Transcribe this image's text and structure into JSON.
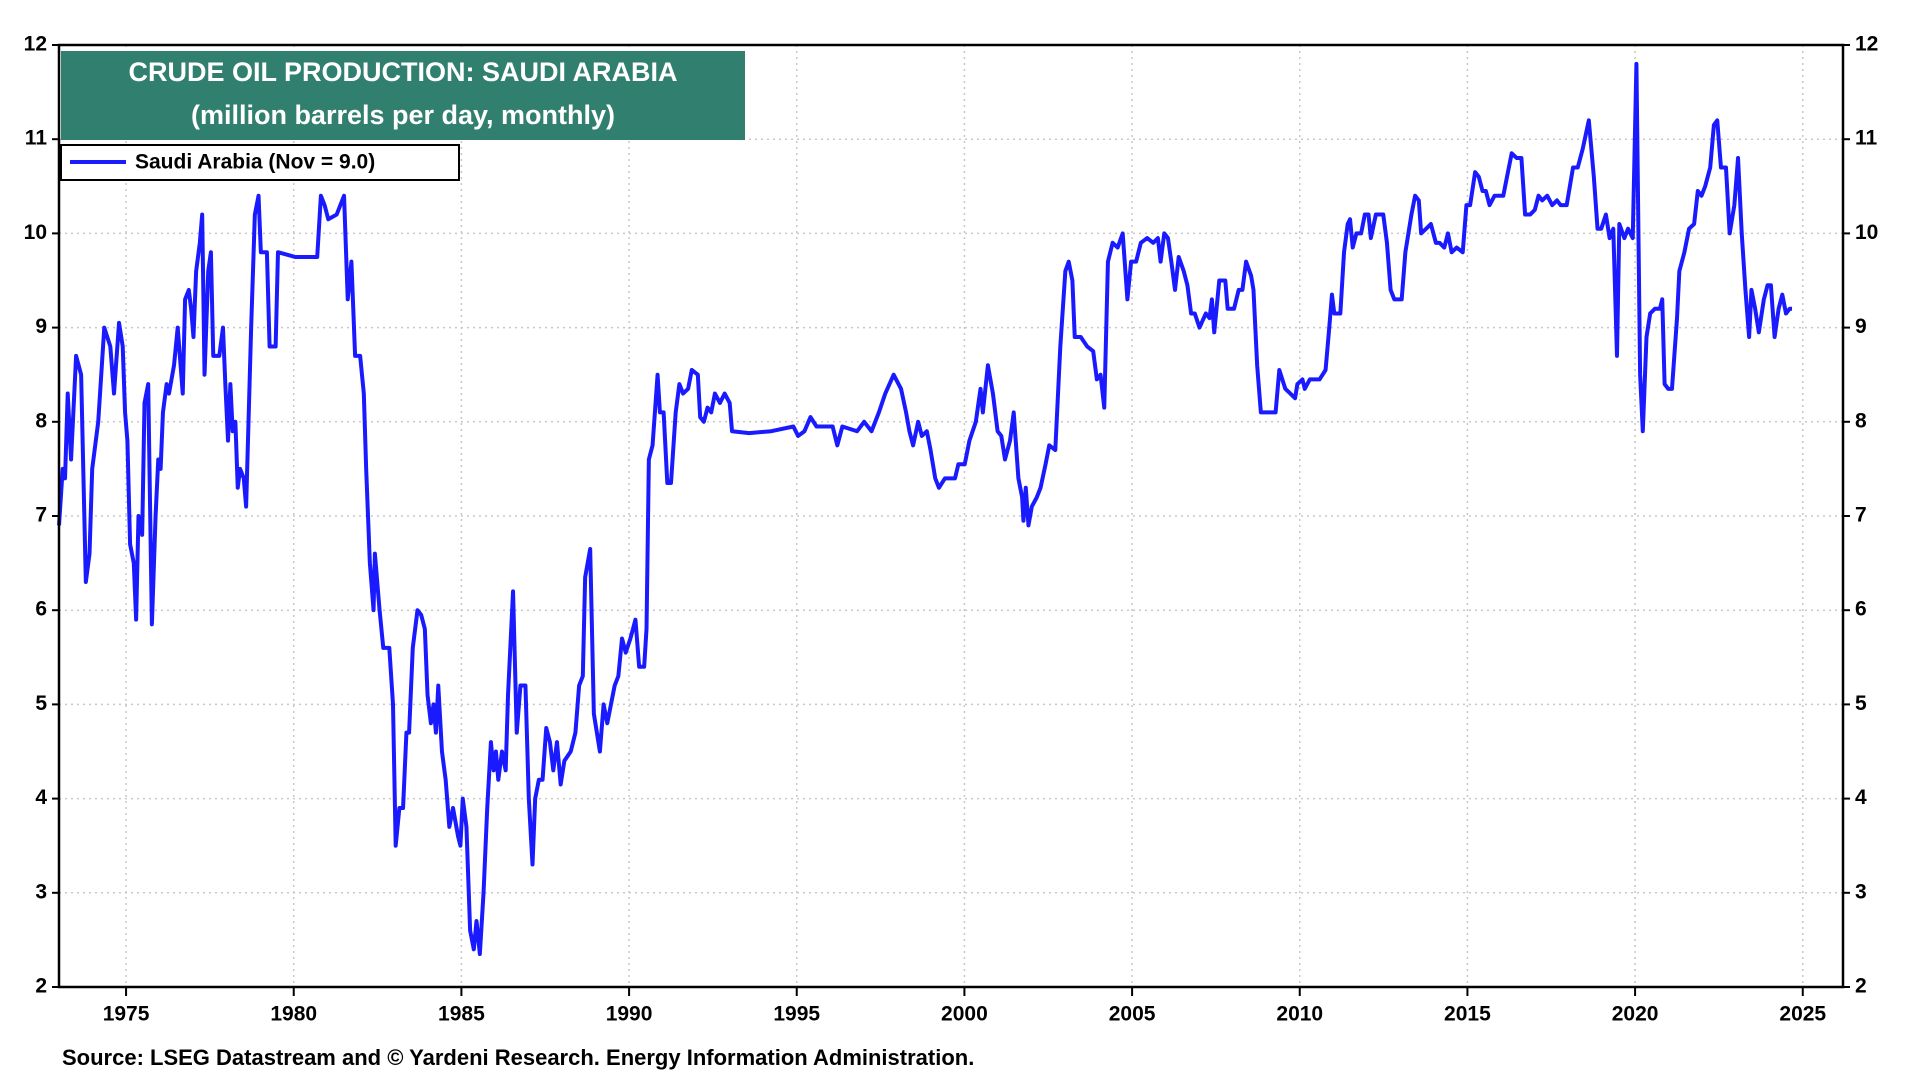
{
  "chart_data": {
    "type": "line",
    "title": "CRUDE OIL PRODUCTION: SAUDI ARABIA",
    "subtitle": "(million barrels per day, monthly)",
    "source": "Source: LSEG Datastream and © Yardeni Research. Energy Information Administration.",
    "legend": "upper left",
    "grid": true,
    "xlim": [
      1973,
      2026.2
    ],
    "ylim": [
      2,
      12
    ],
    "y2lim": [
      2,
      12
    ],
    "xticks": [
      1975,
      1980,
      1985,
      1990,
      1995,
      2000,
      2005,
      2010,
      2015,
      2020,
      2025
    ],
    "yticks": [
      2,
      3,
      4,
      5,
      6,
      7,
      8,
      9,
      10,
      11,
      12
    ],
    "y2ticks": [
      2,
      3,
      4,
      5,
      6,
      7,
      8,
      9,
      10,
      11,
      12
    ],
    "x": [
      1973.0,
      1973.11,
      1973.18,
      1973.26,
      1973.36,
      1973.51,
      1973.66,
      1973.8,
      1973.91,
      1973.99,
      1974.17,
      1974.35,
      1974.53,
      1974.64,
      1974.79,
      1974.9,
      1974.97,
      1975.04,
      1975.12,
      1975.23,
      1975.3,
      1975.37,
      1975.48,
      1975.55,
      1975.66,
      1975.77,
      1975.88,
      1975.96,
      1976.03,
      1976.1,
      1976.21,
      1976.28,
      1976.43,
      1976.54,
      1976.69,
      1976.76,
      1976.87,
      1976.94,
      1977.01,
      1977.09,
      1977.2,
      1977.27,
      1977.34,
      1977.45,
      1977.53,
      1977.6,
      1977.78,
      1977.89,
      1977.96,
      1978.04,
      1978.11,
      1978.18,
      1978.26,
      1978.33,
      1978.4,
      1978.51,
      1978.58,
      1978.73,
      1978.84,
      1978.95,
      1979.02,
      1979.2,
      1979.28,
      1979.46,
      1979.53,
      1980.04,
      1980.7,
      1980.81,
      1980.92,
      1981.03,
      1981.28,
      1981.5,
      1981.61,
      1981.72,
      1981.83,
      1981.98,
      1982.09,
      1982.16,
      1982.27,
      1982.38,
      1982.42,
      1982.56,
      1982.67,
      1982.85,
      1982.96,
      1983.04,
      1983.15,
      1983.26,
      1983.36,
      1983.44,
      1983.55,
      1983.69,
      1983.8,
      1983.91,
      1983.99,
      1984.09,
      1984.17,
      1984.24,
      1984.31,
      1984.42,
      1984.53,
      1984.64,
      1984.75,
      1984.9,
      1984.97,
      1985.04,
      1985.15,
      1985.26,
      1985.37,
      1985.45,
      1985.55,
      1985.66,
      1985.77,
      1985.88,
      1985.96,
      1986.03,
      1986.1,
      1986.21,
      1986.32,
      1986.39,
      1986.54,
      1986.65,
      1986.76,
      1986.91,
      1987.01,
      1987.12,
      1987.2,
      1987.31,
      1987.42,
      1987.53,
      1987.64,
      1987.74,
      1987.85,
      1987.96,
      1988.07,
      1988.26,
      1988.4,
      1988.51,
      1988.62,
      1988.69,
      1988.84,
      1988.95,
      1989.13,
      1989.24,
      1989.35,
      1989.46,
      1989.57,
      1989.68,
      1989.79,
      1989.9,
      1990.04,
      1990.19,
      1990.3,
      1990.45,
      1990.52,
      1990.59,
      1990.7,
      1990.85,
      1990.92,
      1991.03,
      1991.14,
      1991.25,
      1991.39,
      1991.5,
      1991.61,
      1991.76,
      1991.87,
      1992.05,
      1992.12,
      1992.23,
      1992.34,
      1992.45,
      1992.56,
      1992.71,
      1992.85,
      1993.0,
      1993.07,
      1993.58,
      1994.24,
      1994.9,
      1995.04,
      1995.23,
      1995.41,
      1995.59,
      1996.07,
      1996.21,
      1996.36,
      1996.8,
      1997.01,
      1997.23,
      1997.45,
      1997.64,
      1997.89,
      1998.11,
      1998.26,
      1998.36,
      1998.47,
      1998.62,
      1998.73,
      1998.88,
      1998.99,
      1999.13,
      1999.24,
      1999.42,
      1999.72,
      1999.82,
      2000.01,
      2000.15,
      2000.34,
      2000.48,
      2000.55,
      2000.7,
      2000.85,
      2000.99,
      2001.1,
      2001.21,
      2001.36,
      2001.47,
      2001.61,
      2001.72,
      2001.76,
      2001.83,
      2001.91,
      2002.01,
      2002.16,
      2002.27,
      2002.42,
      2002.53,
      2002.71,
      2002.86,
      2003.01,
      2003.11,
      2003.22,
      2003.29,
      2003.47,
      2003.66,
      2003.84,
      2003.95,
      2004.06,
      2004.17,
      2004.28,
      2004.42,
      2004.57,
      2004.72,
      2004.86,
      2004.97,
      2005.12,
      2005.26,
      2005.45,
      2005.63,
      2005.77,
      2005.85,
      2005.96,
      2006.07,
      2006.17,
      2006.28,
      2006.39,
      2006.54,
      2006.65,
      2006.76,
      2006.87,
      2007.01,
      2007.2,
      2007.31,
      2007.38,
      2007.45,
      2007.6,
      2007.78,
      2007.85,
      2008.04,
      2008.18,
      2008.29,
      2008.4,
      2008.55,
      2008.62,
      2008.73,
      2008.84,
      2009.28,
      2009.39,
      2009.57,
      2009.72,
      2009.86,
      2009.93,
      2010.08,
      2010.15,
      2010.3,
      2010.59,
      2010.77,
      2010.88,
      2010.96,
      2011.03,
      2011.21,
      2011.32,
      2011.43,
      2011.5,
      2011.58,
      2011.69,
      2011.83,
      2011.94,
      2012.05,
      2012.12,
      2012.27,
      2012.49,
      2012.6,
      2012.71,
      2012.82,
      2013.04,
      2013.15,
      2013.33,
      2013.44,
      2013.55,
      2013.62,
      2013.77,
      2013.91,
      2014.06,
      2014.17,
      2014.31,
      2014.42,
      2014.53,
      2014.68,
      2014.86,
      2014.97,
      2015.08,
      2015.23,
      2015.34,
      2015.45,
      2015.55,
      2015.66,
      2015.81,
      2016.07,
      2016.18,
      2016.32,
      2016.47,
      2016.61,
      2016.72,
      2016.87,
      2017.01,
      2017.12,
      2017.23,
      2017.38,
      2017.53,
      2017.67,
      2017.78,
      2017.96,
      2018.15,
      2018.29,
      2018.44,
      2018.62,
      2018.77,
      2018.88,
      2018.99,
      2019.13,
      2019.24,
      2019.35,
      2019.46,
      2019.53,
      2019.68,
      2019.79,
      2019.93,
      2020.04,
      2020.15,
      2020.23,
      2020.34,
      2020.45,
      2020.59,
      2020.74,
      2020.81,
      2020.88,
      2020.99,
      2021.1,
      2021.25,
      2021.32,
      2021.47,
      2021.61,
      2021.76,
      2021.87,
      2021.98,
      2022.09,
      2022.24,
      2022.35,
      2022.45,
      2022.56,
      2022.71,
      2022.82,
      2022.96,
      2023.07,
      2023.18,
      2023.29,
      2023.4,
      2023.47,
      2023.58,
      2023.69,
      2023.84,
      2023.95,
      2024.05,
      2024.16,
      2024.28,
      2024.39,
      2024.5,
      2024.61,
      2024.68
    ],
    "series": [
      {
        "name": "Saudi Arabia  (Nov = 9.0)",
        "color": "#1a1aff",
        "values": [
          6.9,
          7.5,
          7.4,
          8.3,
          7.6,
          8.7,
          8.5,
          6.3,
          6.6,
          7.5,
          8.0,
          9.0,
          8.8,
          8.3,
          9.05,
          8.8,
          8.1,
          7.8,
          6.7,
          6.5,
          5.9,
          7.0,
          6.8,
          8.2,
          8.4,
          5.85,
          7.0,
          7.6,
          7.5,
          8.1,
          8.4,
          8.3,
          8.6,
          9.0,
          8.3,
          9.3,
          9.4,
          9.2,
          8.9,
          9.6,
          9.9,
          10.2,
          8.5,
          9.6,
          9.8,
          8.7,
          8.7,
          9.0,
          8.4,
          7.8,
          8.4,
          7.9,
          8.0,
          7.3,
          7.5,
          7.4,
          7.1,
          9.0,
          10.2,
          10.4,
          9.8,
          9.8,
          8.8,
          8.8,
          9.8,
          9.75,
          9.75,
          10.4,
          10.3,
          10.15,
          10.2,
          10.4,
          9.3,
          9.7,
          8.7,
          8.7,
          8.3,
          7.5,
          6.5,
          6.0,
          6.6,
          6.0,
          5.6,
          5.6,
          5.0,
          3.5,
          3.9,
          3.9,
          4.7,
          4.7,
          5.6,
          6.0,
          5.95,
          5.8,
          5.1,
          4.8,
          5.0,
          4.7,
          5.2,
          4.5,
          4.2,
          3.7,
          3.9,
          3.6,
          3.5,
          4.0,
          3.7,
          2.6,
          2.4,
          2.7,
          2.35,
          3.0,
          3.9,
          4.6,
          4.3,
          4.5,
          4.2,
          4.5,
          4.3,
          5.1,
          6.2,
          4.7,
          5.2,
          5.2,
          4.0,
          3.3,
          4.0,
          4.2,
          4.2,
          4.75,
          4.6,
          4.3,
          4.6,
          4.15,
          4.4,
          4.5,
          4.7,
          5.2,
          5.3,
          6.35,
          6.65,
          4.9,
          4.5,
          5.0,
          4.8,
          5.0,
          5.2,
          5.3,
          5.7,
          5.55,
          5.7,
          5.9,
          5.4,
          5.4,
          5.8,
          7.6,
          7.75,
          8.5,
          8.1,
          8.1,
          7.35,
          7.35,
          8.1,
          8.4,
          8.3,
          8.35,
          8.55,
          8.5,
          8.05,
          8.0,
          8.15,
          8.1,
          8.3,
          8.2,
          8.3,
          8.2,
          7.9,
          7.88,
          7.9,
          7.95,
          7.85,
          7.9,
          8.05,
          7.95,
          7.95,
          7.75,
          7.95,
          7.9,
          8.0,
          7.9,
          8.1,
          8.3,
          8.5,
          8.35,
          8.1,
          7.9,
          7.75,
          8.0,
          7.85,
          7.9,
          7.7,
          7.4,
          7.3,
          7.4,
          7.4,
          7.55,
          7.55,
          7.8,
          8.0,
          8.35,
          8.1,
          8.6,
          8.3,
          7.9,
          7.85,
          7.6,
          7.8,
          8.1,
          7.4,
          7.2,
          6.95,
          7.3,
          6.9,
          7.1,
          7.2,
          7.3,
          7.55,
          7.75,
          7.7,
          8.8,
          9.6,
          9.7,
          9.5,
          8.9,
          8.9,
          8.8,
          8.75,
          8.45,
          8.5,
          8.15,
          9.7,
          9.9,
          9.85,
          10.0,
          9.3,
          9.7,
          9.7,
          9.9,
          9.95,
          9.9,
          9.95,
          9.7,
          10.0,
          9.95,
          9.7,
          9.4,
          9.75,
          9.6,
          9.45,
          9.15,
          9.15,
          9.0,
          9.15,
          9.1,
          9.3,
          8.95,
          9.5,
          9.5,
          9.2,
          9.2,
          9.4,
          9.4,
          9.7,
          9.55,
          9.4,
          8.6,
          8.1,
          8.1,
          8.55,
          8.35,
          8.3,
          8.25,
          8.4,
          8.45,
          8.35,
          8.45,
          8.45,
          8.55,
          9.0,
          9.35,
          9.15,
          9.15,
          9.8,
          10.1,
          10.15,
          9.85,
          10.0,
          10.0,
          10.2,
          10.2,
          9.95,
          10.2,
          10.2,
          9.9,
          9.4,
          9.3,
          9.3,
          9.8,
          10.2,
          10.4,
          10.35,
          10.0,
          10.05,
          10.1,
          9.9,
          9.9,
          9.85,
          10.0,
          9.8,
          9.85,
          9.8,
          10.3,
          10.3,
          10.65,
          10.6,
          10.45,
          10.45,
          10.3,
          10.4,
          10.4,
          10.6,
          10.85,
          10.8,
          10.8,
          10.2,
          10.2,
          10.25,
          10.4,
          10.35,
          10.4,
          10.3,
          10.35,
          10.3,
          10.3,
          10.7,
          10.7,
          10.9,
          11.2,
          10.6,
          10.05,
          10.05,
          10.2,
          9.95,
          10.05,
          8.7,
          10.1,
          9.95,
          10.05,
          9.95,
          11.8,
          8.5,
          7.9,
          8.9,
          9.15,
          9.2,
          9.2,
          9.3,
          8.4,
          8.35,
          8.35,
          9.1,
          9.6,
          9.8,
          10.05,
          10.1,
          10.45,
          10.4,
          10.5,
          10.7,
          11.15,
          11.2,
          10.7,
          10.7,
          10.0,
          10.3,
          10.8,
          10.0,
          9.4,
          8.9,
          9.4,
          9.2,
          8.95,
          9.3,
          9.45,
          9.45,
          8.9,
          9.2,
          9.35,
          9.15,
          9.2,
          9.2
        ]
      }
    ]
  }
}
